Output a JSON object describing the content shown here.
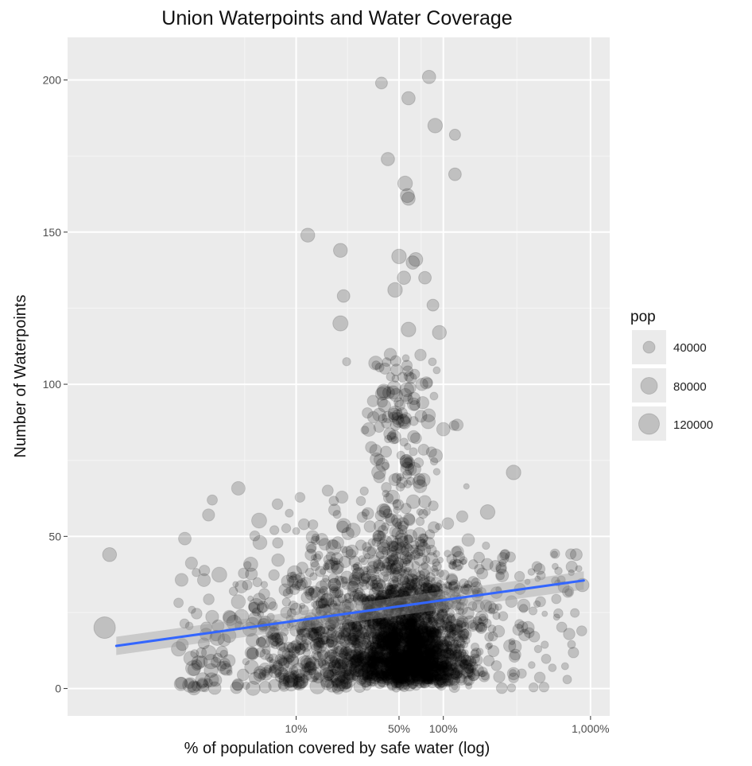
{
  "chart_data": {
    "type": "scatter",
    "title": "Union Waterpoints and Water Coverage",
    "xlabel": "% of population covered by safe water (log)",
    "ylabel": "Number of Waterpoints",
    "x_scale": "log10",
    "xlim": [
      0.28,
      1350
    ],
    "ylim": [
      -9,
      214
    ],
    "x_ticks": [
      {
        "value": 10,
        "label": "10%"
      },
      {
        "value": 50,
        "label": "50%"
      },
      {
        "value": 100,
        "label": "100%"
      },
      {
        "value": 1000,
        "label": "1,000%"
      }
    ],
    "y_ticks": [
      {
        "value": 0,
        "label": "0"
      },
      {
        "value": 50,
        "label": "50"
      },
      {
        "value": 100,
        "label": "100"
      },
      {
        "value": 150,
        "label": "150"
      },
      {
        "value": 200,
        "label": "200"
      }
    ],
    "legend": {
      "title": "pop",
      "position": "right",
      "entries": [
        {
          "label": "40000",
          "pop": 40000
        },
        {
          "label": "80000",
          "pop": 80000
        },
        {
          "label": "120000",
          "pop": 120000
        }
      ]
    },
    "trend_line": {
      "method": "lm",
      "color": "#3366FF",
      "start": {
        "x": 0.6,
        "y": 14
      },
      "end": {
        "x": 900,
        "y": 35.5
      },
      "band_halfwidth": 3
    },
    "point_style": {
      "fill": "#000000",
      "opacity": 0.18
    },
    "notable_points": [
      {
        "x": 38,
        "y": 199,
        "pop": 40000
      },
      {
        "x": 80,
        "y": 201,
        "pop": 50000
      },
      {
        "x": 58,
        "y": 194,
        "pop": 50000
      },
      {
        "x": 88,
        "y": 185,
        "pop": 60000
      },
      {
        "x": 120,
        "y": 182,
        "pop": 35000
      },
      {
        "x": 42,
        "y": 174,
        "pop": 50000
      },
      {
        "x": 120,
        "y": 169,
        "pop": 45000
      },
      {
        "x": 55,
        "y": 166,
        "pop": 60000
      },
      {
        "x": 57,
        "y": 162,
        "pop": 55000
      },
      {
        "x": 58,
        "y": 161,
        "pop": 50000
      },
      {
        "x": 12,
        "y": 149,
        "pop": 55000
      },
      {
        "x": 20,
        "y": 144,
        "pop": 55000
      },
      {
        "x": 50,
        "y": 142,
        "pop": 60000
      },
      {
        "x": 62,
        "y": 140,
        "pop": 50000
      },
      {
        "x": 65,
        "y": 141,
        "pop": 55000
      },
      {
        "x": 47,
        "y": 131,
        "pop": 60000
      },
      {
        "x": 54,
        "y": 135,
        "pop": 50000
      },
      {
        "x": 75,
        "y": 135,
        "pop": 45000
      },
      {
        "x": 21,
        "y": 129,
        "pop": 45000
      },
      {
        "x": 85,
        "y": 126,
        "pop": 40000
      },
      {
        "x": 20,
        "y": 120,
        "pop": 65000
      },
      {
        "x": 58,
        "y": 118,
        "pop": 60000
      },
      {
        "x": 94,
        "y": 117,
        "pop": 55000
      },
      {
        "x": 300,
        "y": 71,
        "pop": 60000
      },
      {
        "x": 0.54,
        "y": 44,
        "pop": 55000
      },
      {
        "x": 0.5,
        "y": 20,
        "pop": 130000
      },
      {
        "x": 200,
        "y": 58,
        "pop": 60000
      },
      {
        "x": 800,
        "y": 44,
        "pop": 40000
      },
      {
        "x": 880,
        "y": 34,
        "pop": 50000
      }
    ]
  }
}
